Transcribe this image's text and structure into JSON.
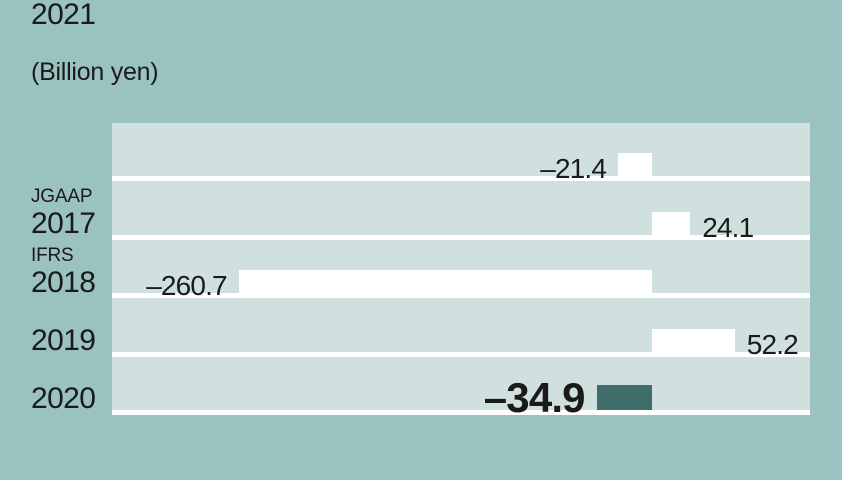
{
  "unit_label": "(Billion yen)",
  "colors": {
    "canvas_background": "#99c2c0",
    "row_background": "#cfe0de",
    "bar_default": "#ffffff",
    "bar_highlight": "#3f6e6a",
    "separator": "#ffffff",
    "text": "#1a1a1a"
  },
  "chart_data": {
    "type": "bar",
    "orientation": "horizontal",
    "title": "",
    "unit": "Billion yen",
    "categories": [
      "2017",
      "2018",
      "2019",
      "2020",
      "2021"
    ],
    "values": [
      -21.4,
      24.1,
      -260.7,
      52.2,
      -34.9
    ],
    "xlim": [
      -340,
      100
    ],
    "grid": false,
    "legend": false,
    "accounting_standard_notes": {
      "2017": "JGAAP",
      "2018": "IFRS"
    },
    "highlighted_category": "2021",
    "rows": [
      {
        "note": "JGAAP",
        "year": "2017",
        "value": -21.4,
        "label": "–21.4",
        "highlight": false
      },
      {
        "note": "IFRS",
        "year": "2018",
        "value": 24.1,
        "label": "24.1",
        "highlight": false
      },
      {
        "note": "",
        "year": "2019",
        "value": -260.7,
        "label": "–260.7",
        "highlight": false
      },
      {
        "note": "",
        "year": "2020",
        "value": 52.2,
        "label": "52.2",
        "highlight": false
      },
      {
        "note": "",
        "year": "2021",
        "value": -34.9,
        "label": "–34.9",
        "highlight": true
      }
    ]
  }
}
